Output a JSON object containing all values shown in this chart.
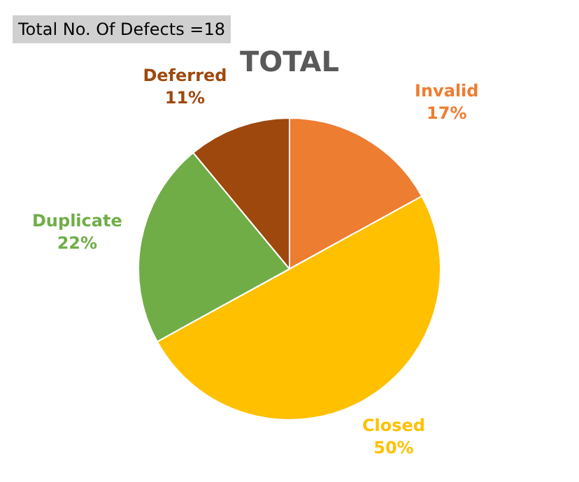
{
  "chart_data": {
    "type": "pie",
    "title": "TOTAL",
    "annotations": [
      "Total No. Of Defects =18"
    ],
    "categories": [
      "Invalid",
      "Closed",
      "Duplicate",
      "Deferred"
    ],
    "values": [
      17,
      50,
      22,
      11
    ],
    "value_labels": [
      "17%",
      "50%",
      "22%",
      "11%"
    ],
    "colors": [
      "#ed7d31",
      "#ffc000",
      "#70ad47",
      "#9e480e"
    ],
    "legend": false
  }
}
